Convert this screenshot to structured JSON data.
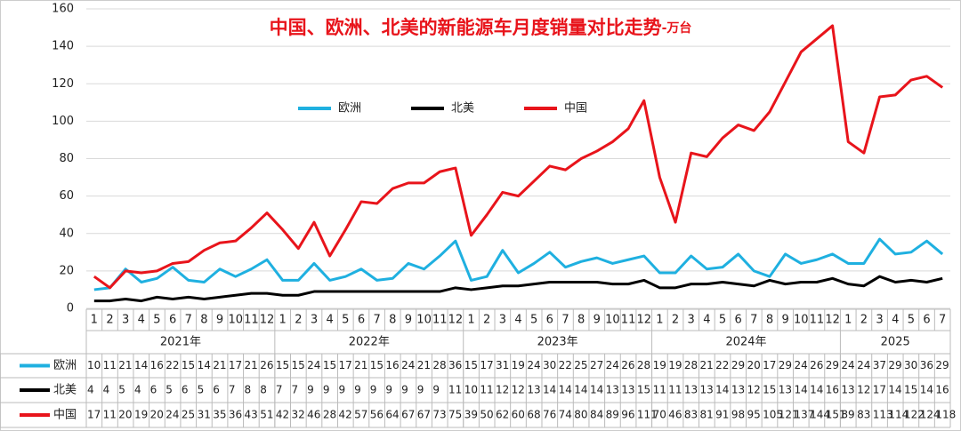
{
  "chart_data": {
    "type": "line",
    "title": "中国、欧洲、北美的新能源车月度销量对比走势",
    "subtitle": "-万台",
    "categories": [
      "1",
      "2",
      "3",
      "4",
      "5",
      "6",
      "7",
      "8",
      "9",
      "10",
      "11",
      "12",
      "1",
      "2",
      "3",
      "4",
      "5",
      "6",
      "7",
      "8",
      "9",
      "10",
      "11",
      "12",
      "1",
      "2",
      "3",
      "4",
      "5",
      "6",
      "7",
      "8",
      "9",
      "10",
      "11",
      "12",
      "1",
      "2",
      "3",
      "4",
      "5",
      "6",
      "7",
      "8",
      "9",
      "10",
      "11",
      "12",
      "1",
      "2",
      "3",
      "4",
      "5",
      "6",
      "7"
    ],
    "groups": [
      "2021年",
      "2022年",
      "2023年",
      "2024年",
      "2025"
    ],
    "series": [
      {
        "name": "欧洲",
        "color": "#1fb0e0",
        "values": [
          10,
          11,
          21,
          14,
          16,
          22,
          15,
          14,
          21,
          17,
          21,
          26,
          15,
          15,
          24,
          15,
          17,
          21,
          15,
          16,
          24,
          21,
          28,
          36,
          15,
          17,
          31,
          19,
          24,
          30,
          22,
          25,
          27,
          24,
          26,
          28,
          19,
          19,
          28,
          21,
          22,
          29,
          20,
          17,
          29,
          24,
          26,
          29,
          24,
          24,
          37,
          29,
          30,
          36,
          29
        ]
      },
      {
        "name": "北美",
        "color": "#000000",
        "values": [
          4,
          4,
          5,
          4,
          6,
          5,
          6,
          5,
          6,
          7,
          8,
          8,
          7,
          7,
          9,
          9,
          9,
          9,
          9,
          9,
          9,
          9,
          9,
          11,
          10,
          11,
          12,
          12,
          13,
          14,
          14,
          14,
          14,
          13,
          13,
          15,
          11,
          11,
          13,
          13,
          14,
          13,
          12,
          15,
          13,
          14,
          14,
          16,
          13,
          12,
          17,
          14,
          15,
          14,
          16
        ]
      },
      {
        "name": "中国",
        "color": "#e8141b",
        "values": [
          17,
          11,
          20,
          19,
          20,
          24,
          25,
          31,
          35,
          36,
          43,
          51,
          42,
          32,
          46,
          28,
          42,
          57,
          56,
          64,
          67,
          67,
          73,
          75,
          39,
          50,
          62,
          60,
          68,
          76,
          74,
          80,
          84,
          89,
          96,
          111,
          70,
          46,
          83,
          81,
          91,
          98,
          95,
          105,
          121,
          137,
          144,
          151,
          89,
          83,
          113,
          114,
          122,
          124,
          118
        ]
      }
    ],
    "ylim": [
      0,
      160
    ],
    "yticks": [
      0,
      20,
      40,
      60,
      80,
      100,
      120,
      140,
      160
    ],
    "grid": true
  }
}
